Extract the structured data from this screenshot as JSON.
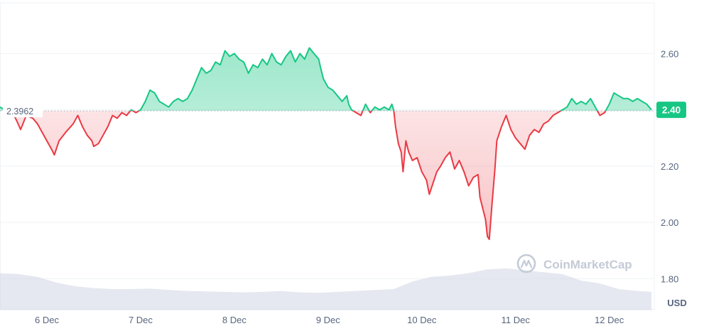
{
  "chart_data": {
    "type": "line",
    "title": "",
    "xlabel": "",
    "ylabel": "USD",
    "currency": "USD",
    "watermark": "CoinMarketCap",
    "baseline": {
      "value": 2.3962,
      "label": "2.3962"
    },
    "current_price": {
      "value": 2.4,
      "label": "2.40"
    },
    "ylim": [
      1.69,
      2.77
    ],
    "y_ticks": [
      {
        "value": 2.6,
        "label": "2.60"
      },
      {
        "value": 2.4,
        "label": "2.40"
      },
      {
        "value": 2.2,
        "label": "2.20"
      },
      {
        "value": 2.0,
        "label": "2.00"
      },
      {
        "value": 1.8,
        "label": "1.80"
      }
    ],
    "x_ticks": [
      {
        "value": 0.5,
        "label": "6 Dec"
      },
      {
        "value": 1.5,
        "label": "7 Dec"
      },
      {
        "value": 2.5,
        "label": "8 Dec"
      },
      {
        "value": 3.5,
        "label": "9 Dec"
      },
      {
        "value": 4.5,
        "label": "10 Dec"
      },
      {
        "value": 5.5,
        "label": "11 Dec"
      },
      {
        "value": 6.5,
        "label": "12 Dec"
      }
    ],
    "xlim": [
      0,
      6.98
    ],
    "colors": {
      "up": "#16c784",
      "down": "#ea3943",
      "up_fill": "#16c784",
      "down_fill": "#ea3943",
      "grid": "#eff2f5",
      "baseline_line": "#a6b0c3",
      "axis_text": "#58667e",
      "volume": "#cfd6e4",
      "watermark": "#c3cbd7"
    },
    "series": [
      {
        "values": [
          [
            0.0,
            2.41
          ],
          [
            0.05,
            2.4
          ],
          [
            0.12,
            2.4
          ],
          [
            0.18,
            2.36
          ],
          [
            0.22,
            2.33
          ],
          [
            0.28,
            2.38
          ],
          [
            0.35,
            2.37
          ],
          [
            0.4,
            2.35
          ],
          [
            0.45,
            2.32
          ],
          [
            0.5,
            2.29
          ],
          [
            0.55,
            2.26
          ],
          [
            0.58,
            2.24
          ],
          [
            0.63,
            2.29
          ],
          [
            0.7,
            2.32
          ],
          [
            0.78,
            2.35
          ],
          [
            0.83,
            2.38
          ],
          [
            0.88,
            2.34
          ],
          [
            0.93,
            2.31
          ],
          [
            0.98,
            2.29
          ],
          [
            1.0,
            2.27
          ],
          [
            1.05,
            2.28
          ],
          [
            1.1,
            2.31
          ],
          [
            1.15,
            2.34
          ],
          [
            1.2,
            2.38
          ],
          [
            1.25,
            2.37
          ],
          [
            1.3,
            2.39
          ],
          [
            1.35,
            2.38
          ],
          [
            1.4,
            2.4
          ],
          [
            1.45,
            2.39
          ],
          [
            1.5,
            2.4
          ],
          [
            1.55,
            2.43
          ],
          [
            1.6,
            2.47
          ],
          [
            1.65,
            2.46
          ],
          [
            1.7,
            2.43
          ],
          [
            1.75,
            2.42
          ],
          [
            1.8,
            2.41
          ],
          [
            1.85,
            2.43
          ],
          [
            1.9,
            2.44
          ],
          [
            1.95,
            2.43
          ],
          [
            2.0,
            2.44
          ],
          [
            2.05,
            2.47
          ],
          [
            2.1,
            2.51
          ],
          [
            2.15,
            2.55
          ],
          [
            2.2,
            2.53
          ],
          [
            2.25,
            2.54
          ],
          [
            2.3,
            2.57
          ],
          [
            2.35,
            2.56
          ],
          [
            2.4,
            2.61
          ],
          [
            2.45,
            2.59
          ],
          [
            2.5,
            2.6
          ],
          [
            2.55,
            2.58
          ],
          [
            2.6,
            2.57
          ],
          [
            2.65,
            2.53
          ],
          [
            2.7,
            2.56
          ],
          [
            2.75,
            2.55
          ],
          [
            2.8,
            2.58
          ],
          [
            2.85,
            2.56
          ],
          [
            2.9,
            2.6
          ],
          [
            2.95,
            2.57
          ],
          [
            3.0,
            2.56
          ],
          [
            3.05,
            2.59
          ],
          [
            3.1,
            2.61
          ],
          [
            3.15,
            2.57
          ],
          [
            3.2,
            2.6
          ],
          [
            3.25,
            2.58
          ],
          [
            3.3,
            2.62
          ],
          [
            3.35,
            2.6
          ],
          [
            3.4,
            2.58
          ],
          [
            3.42,
            2.55
          ],
          [
            3.45,
            2.51
          ],
          [
            3.5,
            2.48
          ],
          [
            3.55,
            2.47
          ],
          [
            3.6,
            2.45
          ],
          [
            3.65,
            2.43
          ],
          [
            3.7,
            2.45
          ],
          [
            3.72,
            2.42
          ],
          [
            3.75,
            2.4
          ],
          [
            3.8,
            2.39
          ],
          [
            3.85,
            2.38
          ],
          [
            3.9,
            2.42
          ],
          [
            3.95,
            2.39
          ],
          [
            4.0,
            2.41
          ],
          [
            4.05,
            2.4
          ],
          [
            4.1,
            2.41
          ],
          [
            4.15,
            2.4
          ],
          [
            4.18,
            2.42
          ],
          [
            4.2,
            2.4
          ],
          [
            4.22,
            2.34
          ],
          [
            4.25,
            2.28
          ],
          [
            4.28,
            2.25
          ],
          [
            4.3,
            2.18
          ],
          [
            4.33,
            2.29
          ],
          [
            4.36,
            2.25
          ],
          [
            4.4,
            2.22
          ],
          [
            4.45,
            2.23
          ],
          [
            4.5,
            2.18
          ],
          [
            4.55,
            2.15
          ],
          [
            4.58,
            2.1
          ],
          [
            4.62,
            2.14
          ],
          [
            4.66,
            2.18
          ],
          [
            4.7,
            2.2
          ],
          [
            4.75,
            2.23
          ],
          [
            4.8,
            2.25
          ],
          [
            4.85,
            2.19
          ],
          [
            4.9,
            2.22
          ],
          [
            4.95,
            2.18
          ],
          [
            5.0,
            2.13
          ],
          [
            5.05,
            2.16
          ],
          [
            5.1,
            2.17
          ],
          [
            5.12,
            2.09
          ],
          [
            5.15,
            2.05
          ],
          [
            5.18,
            2.01
          ],
          [
            5.2,
            1.95
          ],
          [
            5.22,
            1.94
          ],
          [
            5.25,
            2.07
          ],
          [
            5.28,
            2.19
          ],
          [
            5.3,
            2.29
          ],
          [
            5.35,
            2.34
          ],
          [
            5.4,
            2.38
          ],
          [
            5.45,
            2.33
          ],
          [
            5.5,
            2.3
          ],
          [
            5.55,
            2.28
          ],
          [
            5.6,
            2.26
          ],
          [
            5.65,
            2.31
          ],
          [
            5.7,
            2.33
          ],
          [
            5.75,
            2.32
          ],
          [
            5.8,
            2.35
          ],
          [
            5.85,
            2.36
          ],
          [
            5.9,
            2.38
          ],
          [
            5.95,
            2.39
          ],
          [
            6.0,
            2.4
          ],
          [
            6.05,
            2.41
          ],
          [
            6.1,
            2.44
          ],
          [
            6.15,
            2.42
          ],
          [
            6.2,
            2.43
          ],
          [
            6.25,
            2.42
          ],
          [
            6.3,
            2.44
          ],
          [
            6.35,
            2.41
          ],
          [
            6.4,
            2.38
          ],
          [
            6.45,
            2.39
          ],
          [
            6.5,
            2.42
          ],
          [
            6.55,
            2.46
          ],
          [
            6.6,
            2.45
          ],
          [
            6.65,
            2.44
          ],
          [
            6.7,
            2.44
          ],
          [
            6.75,
            2.43
          ],
          [
            6.8,
            2.44
          ],
          [
            6.85,
            2.43
          ],
          [
            6.9,
            2.42
          ],
          [
            6.95,
            2.4
          ]
        ]
      }
    ],
    "volume": [
      [
        0.0,
        0.78
      ],
      [
        0.2,
        0.76
      ],
      [
        0.4,
        0.7
      ],
      [
        0.6,
        0.58
      ],
      [
        0.8,
        0.5
      ],
      [
        1.0,
        0.46
      ],
      [
        1.2,
        0.44
      ],
      [
        1.4,
        0.44
      ],
      [
        1.6,
        0.45
      ],
      [
        1.8,
        0.42
      ],
      [
        2.0,
        0.4
      ],
      [
        2.2,
        0.39
      ],
      [
        2.4,
        0.38
      ],
      [
        2.6,
        0.37
      ],
      [
        2.8,
        0.38
      ],
      [
        3.0,
        0.4
      ],
      [
        3.2,
        0.37
      ],
      [
        3.4,
        0.36
      ],
      [
        3.6,
        0.38
      ],
      [
        3.8,
        0.4
      ],
      [
        4.0,
        0.42
      ],
      [
        4.2,
        0.44
      ],
      [
        4.4,
        0.6
      ],
      [
        4.6,
        0.7
      ],
      [
        4.8,
        0.73
      ],
      [
        5.0,
        0.78
      ],
      [
        5.2,
        0.86
      ],
      [
        5.4,
        0.88
      ],
      [
        5.6,
        0.84
      ],
      [
        5.8,
        0.8
      ],
      [
        6.0,
        0.76
      ],
      [
        6.2,
        0.62
      ],
      [
        6.4,
        0.56
      ],
      [
        6.6,
        0.44
      ],
      [
        6.8,
        0.4
      ],
      [
        6.95,
        0.38
      ]
    ]
  }
}
